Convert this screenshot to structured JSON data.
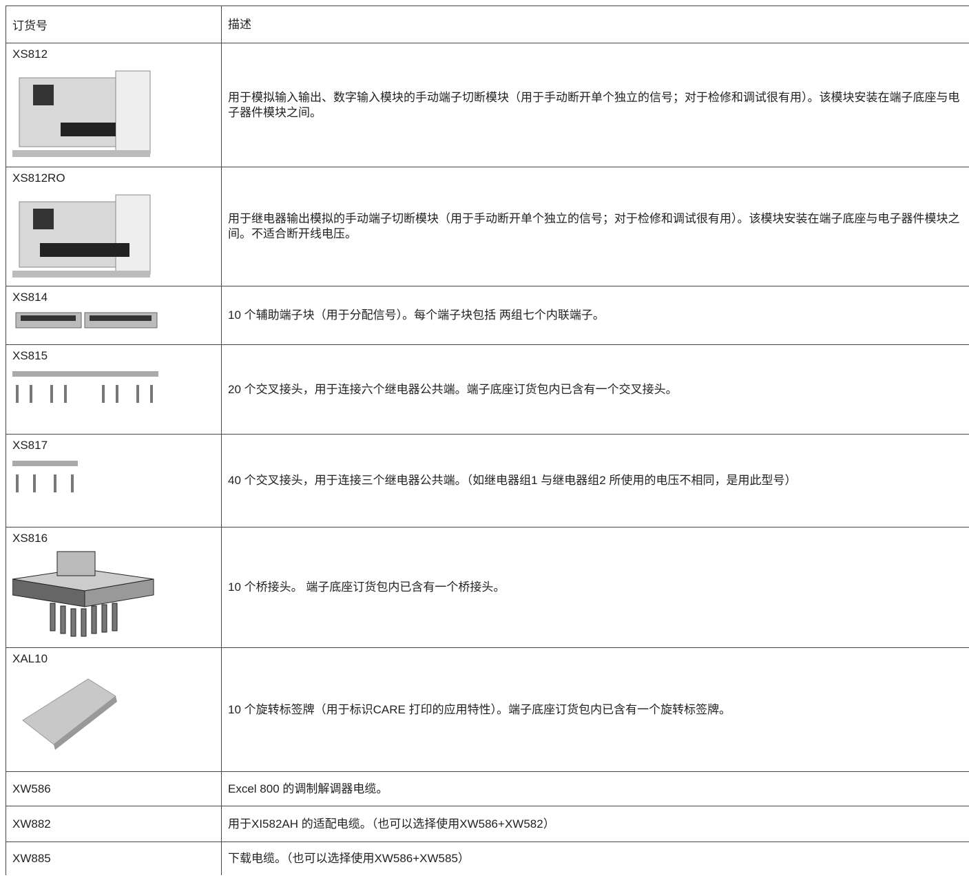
{
  "header": {
    "code": "订货号",
    "description": "描述"
  },
  "rows": [
    {
      "code": "XS812",
      "description": "用于模拟输入输出、数字输入模块的手动端子切断模块（用于手动断开单个独立的信号；对于检修和调试很有用）。该模块安装在端子底座与电子器件模块之间。"
    },
    {
      "code": "XS812RO",
      "description": "用于继电器输出模拟的手动端子切断模块（用于手动断开单个独立的信号；对于检修和调试很有用）。该模块安装在端子底座与电子器件模块之间。不适合断开线电压。"
    },
    {
      "code": "XS814",
      "description": "10 个辅助端子块（用于分配信号）。每个端子块包括 两组七个内联端子。"
    },
    {
      "code": "XS815",
      "description": "20 个交叉接头，用于连接六个继电器公共端。端子底座订货包内已含有一个交叉接头。"
    },
    {
      "code": "XS817",
      "description": "40 个交叉接头，用于连接三个继电器公共端。（如继电器组1 与继电器组2 所使用的电压不相同，是用此型号）"
    },
    {
      "code": "XS816",
      "description": "10 个桥接头。 端子底座订货包内已含有一个桥接头。"
    },
    {
      "code": "XAL10",
      "description": "10 个旋转标签牌（用于标识CARE 打印的应用特性）。端子底座订货包内已含有一个旋转标签牌。"
    },
    {
      "code": "XW586",
      "description": "Excel 800 的调制解调器电缆。"
    },
    {
      "code": "XW882",
      "description": "用于XI582AH 的适配电缆。（也可以选择使用XW586+XW582）"
    },
    {
      "code": "XW885",
      "description": "下载电缆。（也可以选择使用XW586+XW585）"
    }
  ]
}
